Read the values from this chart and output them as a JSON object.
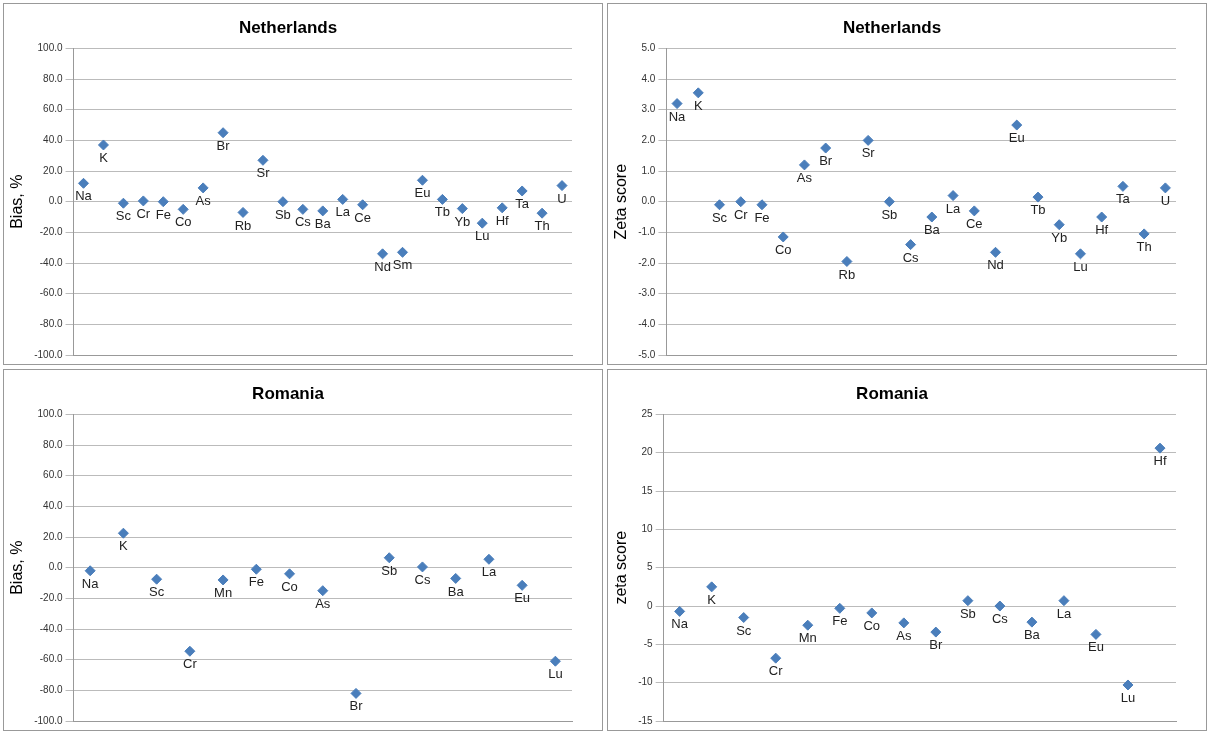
{
  "chart_data": [
    {
      "type": "scatter",
      "title": "Netherlands",
      "ylabel": "Bias, %",
      "categories": [
        "Na",
        "K",
        "Sc",
        "Cr",
        "Fe",
        "Co",
        "As",
        "Br",
        "Rb",
        "Sr",
        "Sb",
        "Cs",
        "Ba",
        "La",
        "Ce",
        "Nd",
        "Sm",
        "Eu",
        "Tb",
        "Yb",
        "Lu",
        "Hf",
        "Ta",
        "Th",
        "U"
      ],
      "values": [
        12,
        37,
        -1,
        0.5,
        0,
        -5,
        9,
        45,
        -7,
        27,
        0,
        -5,
        -6,
        1.5,
        -2,
        -34,
        -33,
        14,
        1.5,
        -4.5,
        -14,
        -4,
        7,
        -7.5,
        10.5
      ],
      "color": "#4a7ebb",
      "marker": "diamond",
      "ylim": [
        -100,
        100
      ],
      "yticks": [
        {
          "value": -100,
          "label": "-100.0"
        },
        {
          "value": -80,
          "label": "-80.0"
        },
        {
          "value": -60,
          "label": "-60.0"
        },
        {
          "value": -40,
          "label": "-40.0"
        },
        {
          "value": -20,
          "label": "-20.0"
        },
        {
          "value": 0,
          "label": "0.0"
        },
        {
          "value": 20,
          "label": "20.0"
        },
        {
          "value": 40,
          "label": "40.0"
        },
        {
          "value": 60,
          "label": "60.0"
        },
        {
          "value": 80,
          "label": "80.0"
        },
        {
          "value": 100,
          "label": "100.0"
        }
      ],
      "grid": "y",
      "tick_labels": "y"
    },
    {
      "type": "scatter",
      "title": "Netherlands",
      "ylabel": "Zeta score",
      "categories": [
        "Na",
        "K",
        "Sc",
        "Cr",
        "Fe",
        "Co",
        "As",
        "Br",
        "Rb",
        "Sr",
        "Sb",
        "Cs",
        "Ba",
        "La",
        "Ce",
        "Nd",
        "Eu",
        "Tb",
        "Yb",
        "Lu",
        "Hf",
        "Ta",
        "Th",
        "U"
      ],
      "values": [
        3.2,
        3.55,
        -0.1,
        0,
        -0.1,
        -1.15,
        1.2,
        1.75,
        -1.95,
        2,
        0,
        -1.4,
        -0.5,
        0.2,
        -0.3,
        -1.65,
        2.5,
        0.15,
        -0.75,
        -1.7,
        -0.5,
        0.5,
        -1.05,
        0.45
      ],
      "color": "#4a7ebb",
      "marker": "diamond",
      "ylim": [
        -5,
        5
      ],
      "yticks": [
        {
          "value": -5,
          "label": "-5.0"
        },
        {
          "value": -4,
          "label": "-4.0"
        },
        {
          "value": -3,
          "label": "-3.0"
        },
        {
          "value": -2,
          "label": "-2.0"
        },
        {
          "value": -1,
          "label": "-1.0"
        },
        {
          "value": 0,
          "label": "0.0"
        },
        {
          "value": 1,
          "label": "1.0"
        },
        {
          "value": 2,
          "label": "2.0"
        },
        {
          "value": 3,
          "label": "3.0"
        },
        {
          "value": 4,
          "label": "4.0"
        },
        {
          "value": 5,
          "label": "5.0"
        }
      ],
      "grid": "y",
      "tick_labels": "y"
    },
    {
      "type": "scatter",
      "title": "Romania",
      "ylabel": "Bias, %",
      "categories": [
        "Na",
        "K",
        "Sc",
        "Cr",
        "Mn",
        "Fe",
        "Co",
        "As",
        "Br",
        "Sb",
        "Cs",
        "Ba",
        "La",
        "Eu",
        "Lu"
      ],
      "values": [
        -2,
        22.5,
        -7.5,
        -54.5,
        -8,
        -1,
        -4,
        -15,
        -82,
        6.5,
        0.5,
        -7,
        5.5,
        -11.5,
        -61
      ],
      "color": "#4a7ebb",
      "marker": "diamond",
      "ylim": [
        -100,
        100
      ],
      "yticks": [
        {
          "value": -100,
          "label": "-100.0"
        },
        {
          "value": -80,
          "label": "-80.0"
        },
        {
          "value": -60,
          "label": "-60.0"
        },
        {
          "value": -40,
          "label": "-40.0"
        },
        {
          "value": -20,
          "label": "-20.0"
        },
        {
          "value": 0,
          "label": "0.0"
        },
        {
          "value": 20,
          "label": "20.0"
        },
        {
          "value": 40,
          "label": "40.0"
        },
        {
          "value": 60,
          "label": "60.0"
        },
        {
          "value": 80,
          "label": "80.0"
        },
        {
          "value": 100,
          "label": "100.0"
        }
      ],
      "grid": "y",
      "tick_labels": "y"
    },
    {
      "type": "scatter",
      "title": "Romania",
      "ylabel": "zeta score",
      "categories": [
        "Na",
        "K",
        "Sc",
        "Cr",
        "Mn",
        "Fe",
        "Co",
        "As",
        "Br",
        "Sb",
        "Cs",
        "Ba",
        "La",
        "Eu",
        "Lu",
        "Hf"
      ],
      "values": [
        -0.7,
        2.5,
        -1.5,
        -6.8,
        -2.5,
        -0.3,
        -0.9,
        -2.2,
        -3.4,
        0.7,
        0,
        -2.1,
        0.7,
        -3.7,
        -10.3,
        20.6
      ],
      "color": "#4a7ebb",
      "marker": "diamond",
      "ylim": [
        -15,
        25
      ],
      "yticks": [
        -15,
        -10,
        -5,
        0,
        5,
        10,
        15,
        20,
        25
      ],
      "grid": "y",
      "tick_labels": "y"
    }
  ]
}
